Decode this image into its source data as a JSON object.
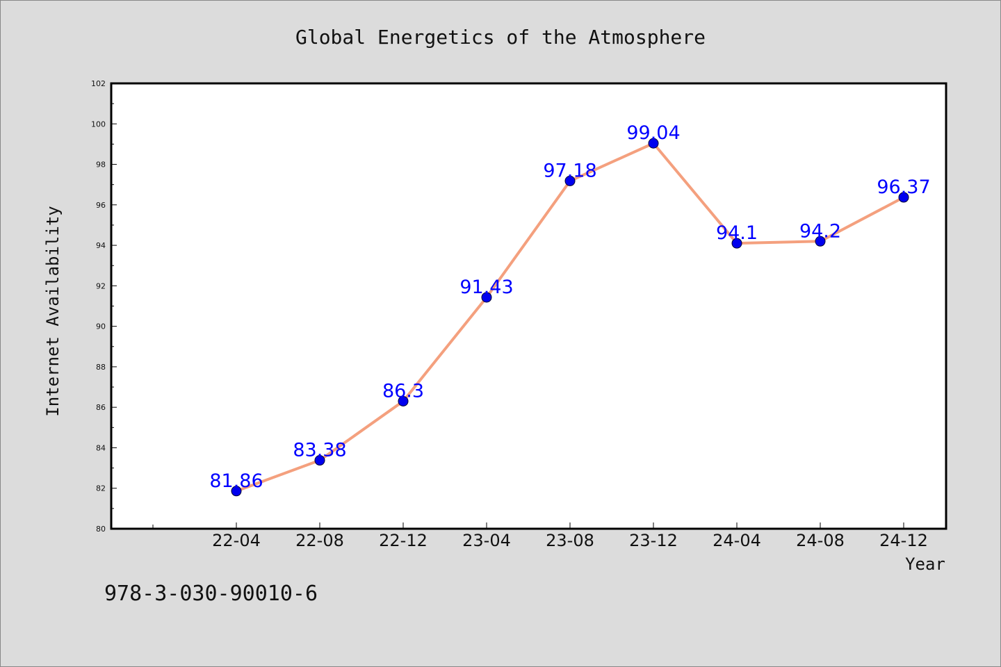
{
  "chart_data": {
    "type": "line",
    "title": "Global Energetics of the Atmosphere",
    "xlabel": "Year",
    "ylabel": "Internet Availability",
    "categories": [
      "22-04",
      "22-08",
      "22-12",
      "23-04",
      "23-08",
      "23-12",
      "24-04",
      "24-08",
      "24-12"
    ],
    "values": [
      81.86,
      83.38,
      86.3,
      91.43,
      97.18,
      99.04,
      94.1,
      94.2,
      96.37
    ],
    "data_labels": [
      "81.86",
      "83.38",
      "86.3",
      "91.43",
      "97.18",
      "99.04",
      "94.1",
      "94.2",
      "96.37"
    ],
    "ylim": [
      80,
      102
    ],
    "yticks": [
      80,
      82,
      84,
      86,
      88,
      90,
      92,
      94,
      96,
      98,
      100,
      102
    ],
    "grid": false,
    "legend": "none",
    "colors": {
      "line": "#f4a07e",
      "marker": "#0000ee",
      "label": "#0000ff",
      "background": "#dcdcdc",
      "plot_background": "#ffffff"
    }
  },
  "footer": {
    "isbn": "978-3-030-90010-6"
  }
}
